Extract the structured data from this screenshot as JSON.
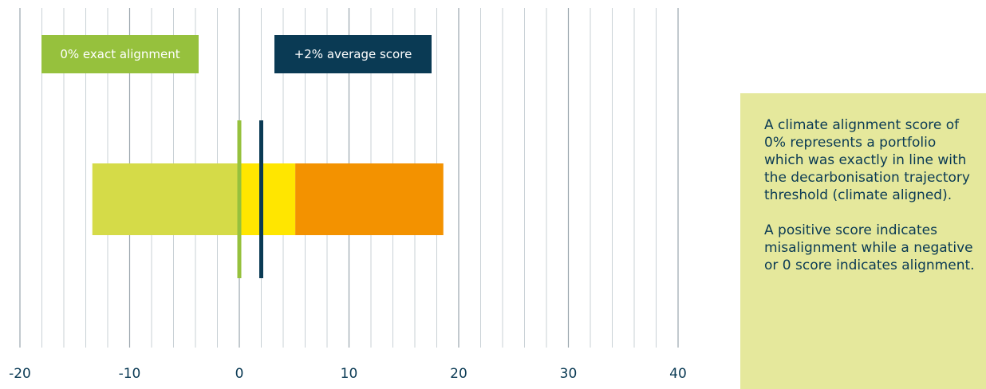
{
  "chart_data": {
    "type": "bar",
    "orientation": "horizontal",
    "x_ticks": [
      -20,
      -10,
      0,
      10,
      20,
      30,
      40
    ],
    "minor_ticks": [
      -18,
      -16,
      -14,
      -12,
      -8,
      -6,
      -4,
      -2,
      2,
      4,
      6,
      8,
      12,
      14,
      16,
      18,
      22,
      24,
      26,
      28,
      32,
      34,
      36,
      38
    ],
    "xlim": [
      -20,
      40
    ],
    "grid": true,
    "segments": [
      {
        "start": -13.4,
        "end": 0,
        "color": "#d5db48"
      },
      {
        "start": 0,
        "end": 5.1,
        "color": "#ffe600"
      },
      {
        "start": 5.1,
        "end": 18.6,
        "color": "#f39200"
      }
    ],
    "markers": [
      {
        "value": 0,
        "label": "0% exact alignment",
        "color": "#96c13d"
      },
      {
        "value": 2,
        "label": "+2% average score",
        "color": "#0a3a54"
      }
    ]
  },
  "note": {
    "background": "#e5e89c",
    "paragraph_1": "A climate alignment score of 0% represents a portfolio which was exactly in line with the decarbonisation trajectory threshold (climate aligned).",
    "paragraph_2": "A positive score indicates misalignment while a negative or 0 score indicates alignment."
  }
}
